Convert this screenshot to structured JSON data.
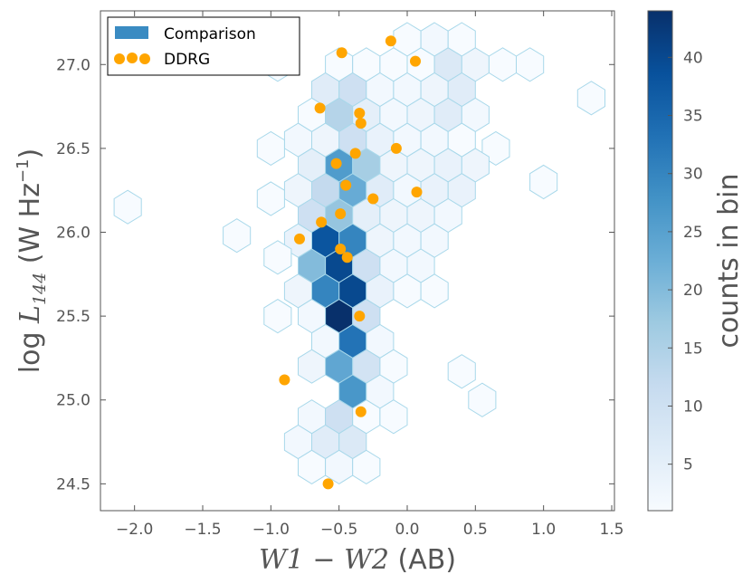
{
  "chart_data": {
    "type": "scatter",
    "title": "",
    "xlabel": "W1 − W2 (AB)",
    "ylabel": "log L144 (W Hz⁻¹)",
    "ylabel_parts": {
      "prefix": "log ",
      "symbol": "L",
      "subscript": "144",
      "units_open": " (W Hz",
      "units_exp": "−1",
      "units_close": ")"
    },
    "xlabel_parts": {
      "math": "W1 − W2",
      "units": " (AB)"
    },
    "xlim": [
      -2.25,
      1.52
    ],
    "ylim": [
      24.34,
      27.32
    ],
    "xticks": [
      -2.0,
      -1.5,
      -1.0,
      -0.5,
      0.0,
      0.5,
      1.0,
      1.5
    ],
    "xtick_labels": [
      "−2.0",
      "−1.5",
      "−1.0",
      "−0.5",
      "0.0",
      "0.5",
      "1.0",
      "1.5"
    ],
    "yticks": [
      24.5,
      25.0,
      25.5,
      26.0,
      26.5,
      27.0
    ],
    "ytick_labels": [
      "24.5",
      "25.0",
      "25.5",
      "26.0",
      "26.5",
      "27.0"
    ],
    "grid": false,
    "legend_position": "top-left",
    "legend": [
      {
        "label": "Comparison",
        "kind": "patch",
        "color": "#3a8bc2"
      },
      {
        "label": "DDRG",
        "kind": "marker",
        "color": "#ffa500"
      }
    ],
    "colorbar": {
      "label": "counts in bin",
      "min": 1,
      "max": 44,
      "ticks": [
        5,
        10,
        15,
        20,
        25,
        30,
        35,
        40
      ],
      "tick_labels": [
        "5",
        "10",
        "15",
        "20",
        "25",
        "30",
        "35",
        "40"
      ],
      "colormap": "Blues"
    },
    "hexbin": {
      "hex_width": 0.2,
      "hex_height": 0.2,
      "edge_color": "#a8d8ea",
      "cells": [
        {
          "x": 0.0,
          "y": 27.15,
          "count": 1
        },
        {
          "x": 0.2,
          "y": 27.15,
          "count": 2
        },
        {
          "x": 0.4,
          "y": 27.15,
          "count": 1
        },
        {
          "x": -0.5,
          "y": 27.0,
          "count": 1
        },
        {
          "x": -0.3,
          "y": 27.0,
          "count": 1
        },
        {
          "x": -0.1,
          "y": 27.0,
          "count": 1
        },
        {
          "x": 0.1,
          "y": 27.0,
          "count": 1
        },
        {
          "x": 0.3,
          "y": 27.0,
          "count": 7
        },
        {
          "x": 0.5,
          "y": 27.0,
          "count": 3
        },
        {
          "x": 0.7,
          "y": 27.0,
          "count": 1
        },
        {
          "x": 0.9,
          "y": 27.0,
          "count": 1
        },
        {
          "x": -0.95,
          "y": 27.0,
          "count": 1
        },
        {
          "x": -0.6,
          "y": 26.85,
          "count": 6
        },
        {
          "x": -0.4,
          "y": 26.85,
          "count": 10
        },
        {
          "x": -0.2,
          "y": 26.85,
          "count": 2
        },
        {
          "x": 0.0,
          "y": 26.85,
          "count": 2
        },
        {
          "x": 0.2,
          "y": 26.85,
          "count": 3
        },
        {
          "x": 0.4,
          "y": 26.85,
          "count": 6
        },
        {
          "x": 1.35,
          "y": 26.8,
          "count": 1
        },
        {
          "x": -0.7,
          "y": 26.7,
          "count": 1
        },
        {
          "x": -0.5,
          "y": 26.7,
          "count": 14
        },
        {
          "x": -0.3,
          "y": 26.7,
          "count": 5
        },
        {
          "x": -0.1,
          "y": 26.7,
          "count": 2
        },
        {
          "x": 0.1,
          "y": 26.7,
          "count": 3
        },
        {
          "x": 0.3,
          "y": 26.7,
          "count": 6
        },
        {
          "x": 0.5,
          "y": 26.7,
          "count": 2
        },
        {
          "x": -0.8,
          "y": 26.55,
          "count": 2
        },
        {
          "x": -0.6,
          "y": 26.55,
          "count": 3
        },
        {
          "x": -0.4,
          "y": 26.55,
          "count": 10
        },
        {
          "x": -0.2,
          "y": 26.55,
          "count": 4
        },
        {
          "x": 0.0,
          "y": 26.55,
          "count": 2
        },
        {
          "x": 0.2,
          "y": 26.55,
          "count": 2
        },
        {
          "x": 0.4,
          "y": 26.55,
          "count": 1
        },
        {
          "x": -1.0,
          "y": 26.5,
          "count": 1
        },
        {
          "x": 0.65,
          "y": 26.5,
          "count": 1
        },
        {
          "x": -0.7,
          "y": 26.4,
          "count": 5
        },
        {
          "x": -0.5,
          "y": 26.4,
          "count": 26
        },
        {
          "x": -0.3,
          "y": 26.4,
          "count": 16
        },
        {
          "x": -0.1,
          "y": 26.4,
          "count": 3
        },
        {
          "x": 0.1,
          "y": 26.4,
          "count": 3
        },
        {
          "x": 0.3,
          "y": 26.4,
          "count": 4
        },
        {
          "x": 0.5,
          "y": 26.4,
          "count": 3
        },
        {
          "x": 1.0,
          "y": 26.3,
          "count": 1
        },
        {
          "x": -0.8,
          "y": 26.25,
          "count": 3
        },
        {
          "x": -0.6,
          "y": 26.25,
          "count": 12
        },
        {
          "x": -0.4,
          "y": 26.25,
          "count": 23
        },
        {
          "x": -0.2,
          "y": 26.25,
          "count": 6
        },
        {
          "x": 0.0,
          "y": 26.25,
          "count": 2
        },
        {
          "x": 0.2,
          "y": 26.25,
          "count": 4
        },
        {
          "x": 0.4,
          "y": 26.25,
          "count": 4
        },
        {
          "x": -1.0,
          "y": 26.2,
          "count": 1
        },
        {
          "x": -2.05,
          "y": 26.15,
          "count": 1
        },
        {
          "x": -0.7,
          "y": 26.1,
          "count": 10
        },
        {
          "x": -0.5,
          "y": 26.1,
          "count": 18
        },
        {
          "x": -0.3,
          "y": 26.1,
          "count": 5
        },
        {
          "x": -0.1,
          "y": 26.1,
          "count": 3
        },
        {
          "x": 0.1,
          "y": 26.1,
          "count": 3
        },
        {
          "x": 0.3,
          "y": 26.1,
          "count": 2
        },
        {
          "x": -0.8,
          "y": 25.95,
          "count": 4
        },
        {
          "x": -0.6,
          "y": 25.95,
          "count": 38
        },
        {
          "x": -0.4,
          "y": 25.95,
          "count": 30
        },
        {
          "x": -0.2,
          "y": 25.95,
          "count": 3
        },
        {
          "x": 0.0,
          "y": 25.95,
          "count": 2
        },
        {
          "x": 0.2,
          "y": 25.95,
          "count": 2
        },
        {
          "x": -1.25,
          "y": 25.98,
          "count": 1
        },
        {
          "x": -0.95,
          "y": 25.85,
          "count": 1
        },
        {
          "x": -0.7,
          "y": 25.8,
          "count": 20
        },
        {
          "x": -0.5,
          "y": 25.8,
          "count": 40
        },
        {
          "x": -0.3,
          "y": 25.8,
          "count": 10
        },
        {
          "x": -0.1,
          "y": 25.8,
          "count": 2
        },
        {
          "x": 0.1,
          "y": 25.8,
          "count": 2
        },
        {
          "x": -0.8,
          "y": 25.65,
          "count": 3
        },
        {
          "x": -0.6,
          "y": 25.65,
          "count": 30
        },
        {
          "x": -0.4,
          "y": 25.65,
          "count": 40
        },
        {
          "x": -0.2,
          "y": 25.65,
          "count": 4
        },
        {
          "x": 0.0,
          "y": 25.65,
          "count": 1
        },
        {
          "x": 0.2,
          "y": 25.65,
          "count": 1
        },
        {
          "x": -0.95,
          "y": 25.5,
          "count": 1
        },
        {
          "x": -0.7,
          "y": 25.5,
          "count": 2
        },
        {
          "x": -0.5,
          "y": 25.5,
          "count": 44
        },
        {
          "x": -0.3,
          "y": 25.5,
          "count": 10
        },
        {
          "x": -0.6,
          "y": 25.35,
          "count": 2
        },
        {
          "x": -0.4,
          "y": 25.35,
          "count": 33
        },
        {
          "x": -0.2,
          "y": 25.35,
          "count": 2
        },
        {
          "x": -0.7,
          "y": 25.2,
          "count": 3
        },
        {
          "x": -0.5,
          "y": 25.2,
          "count": 24
        },
        {
          "x": -0.3,
          "y": 25.2,
          "count": 9
        },
        {
          "x": -0.1,
          "y": 25.2,
          "count": 1
        },
        {
          "x": 0.4,
          "y": 25.17,
          "count": 1
        },
        {
          "x": -0.4,
          "y": 25.05,
          "count": 27
        },
        {
          "x": -0.2,
          "y": 25.05,
          "count": 2
        },
        {
          "x": 0.55,
          "y": 25.0,
          "count": 1
        },
        {
          "x": -0.7,
          "y": 24.9,
          "count": 2
        },
        {
          "x": -0.5,
          "y": 24.9,
          "count": 10
        },
        {
          "x": -0.3,
          "y": 24.9,
          "count": 1
        },
        {
          "x": -0.1,
          "y": 24.9,
          "count": 1
        },
        {
          "x": -0.8,
          "y": 24.75,
          "count": 2
        },
        {
          "x": -0.6,
          "y": 24.75,
          "count": 6
        },
        {
          "x": -0.4,
          "y": 24.75,
          "count": 7
        },
        {
          "x": -0.7,
          "y": 24.6,
          "count": 1
        },
        {
          "x": -0.5,
          "y": 24.6,
          "count": 2
        },
        {
          "x": -0.3,
          "y": 24.6,
          "count": 1
        }
      ]
    },
    "series": [
      {
        "name": "DDRG",
        "color": "#ffa500",
        "points": [
          {
            "x": -0.48,
            "y": 27.07
          },
          {
            "x": -0.12,
            "y": 27.14
          },
          {
            "x": 0.06,
            "y": 27.02
          },
          {
            "x": -0.64,
            "y": 26.74
          },
          {
            "x": -0.35,
            "y": 26.71
          },
          {
            "x": -0.34,
            "y": 26.65
          },
          {
            "x": -0.08,
            "y": 26.5
          },
          {
            "x": -0.38,
            "y": 26.47
          },
          {
            "x": -0.52,
            "y": 26.41
          },
          {
            "x": -0.45,
            "y": 26.28
          },
          {
            "x": -0.25,
            "y": 26.2
          },
          {
            "x": 0.07,
            "y": 26.24
          },
          {
            "x": -0.49,
            "y": 26.11
          },
          {
            "x": -0.63,
            "y": 26.06
          },
          {
            "x": -0.79,
            "y": 25.96
          },
          {
            "x": -0.49,
            "y": 25.9
          },
          {
            "x": -0.44,
            "y": 25.85
          },
          {
            "x": -0.35,
            "y": 25.5
          },
          {
            "x": -0.9,
            "y": 25.12
          },
          {
            "x": -0.34,
            "y": 24.93
          },
          {
            "x": -0.58,
            "y": 24.5
          }
        ]
      }
    ]
  }
}
